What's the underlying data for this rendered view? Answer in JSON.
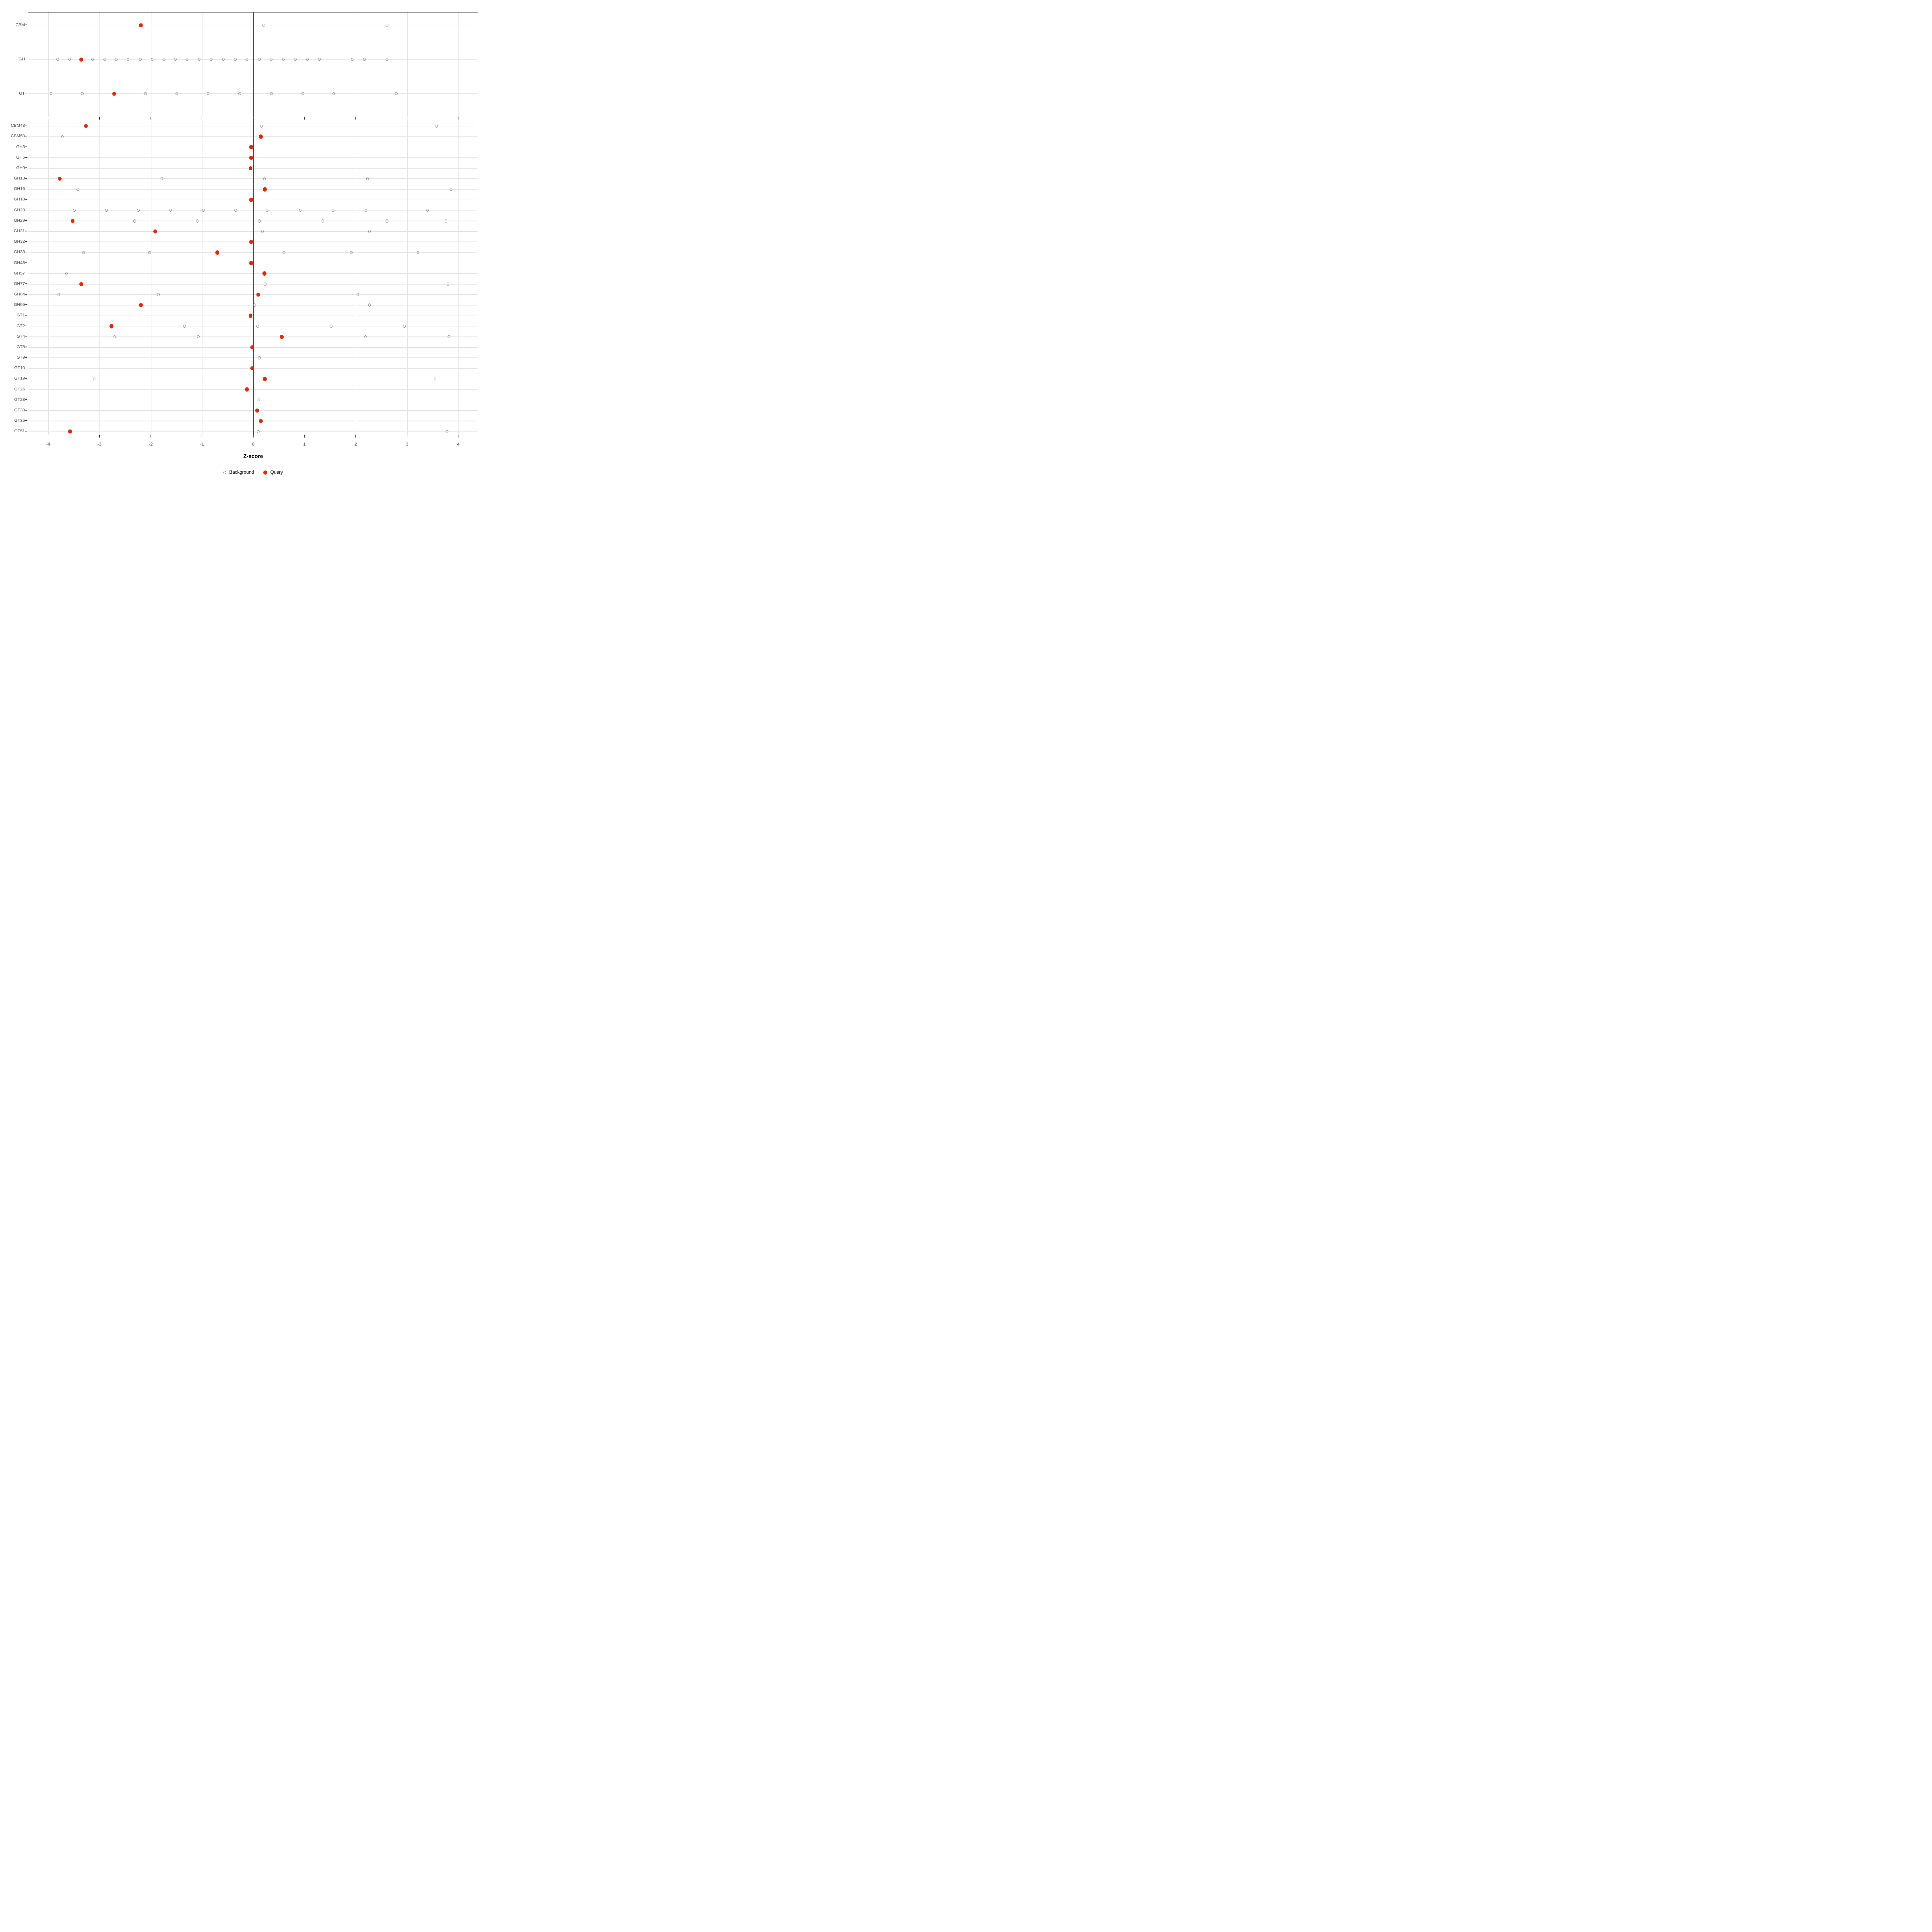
{
  "chart_data": {
    "type": "scatter",
    "variant": "dot-strip-plot",
    "title": "",
    "xlabel": "Z-score",
    "ylabel": "",
    "x_ticks": [
      -4,
      -3,
      -2,
      -1,
      0,
      1,
      2,
      3,
      4
    ],
    "x_tick_labels": [
      "-4",
      "-3",
      "-2",
      "-1",
      "0",
      "1",
      "2",
      "3",
      "4"
    ],
    "xlim": [
      -4.4,
      4.4
    ],
    "grid": true,
    "legend_position": "bottom",
    "reference_lines": {
      "solid_at": 0,
      "dashed_at": [
        -2,
        2
      ]
    },
    "colors": {
      "query": "#db2b0c",
      "background_stroke": "#8f8f8f",
      "gridline": "#e3e3e3",
      "reference_line": "#565656",
      "panel_border": "#333333",
      "axis_text": "#454545"
    },
    "legend": [
      {
        "label": "Background",
        "series": "background"
      },
      {
        "label": "Query",
        "series": "query"
      }
    ],
    "panels": [
      {
        "name": "summary",
        "rows": [
          {
            "label": "CBM",
            "background": [
              0.2,
              2.6
            ],
            "query": -2.2
          },
          {
            "label": "GH",
            "background": [
              -3.82,
              -3.59,
              -3.14,
              -2.9,
              -2.68,
              -2.45,
              -2.21,
              -1.98,
              -1.75,
              -1.53,
              -1.3,
              -1.06,
              -0.83,
              -0.59,
              -0.36,
              -0.13,
              0.11,
              0.34,
              0.58,
              0.81,
              1.05,
              1.28,
              1.92,
              2.16,
              2.6
            ],
            "query": -3.36
          },
          {
            "label": "GT",
            "background": [
              -3.95,
              -3.34,
              -2.11,
              -1.5,
              -0.89,
              -0.27,
              0.35,
              0.96,
              1.56,
              2.78
            ],
            "query": -2.72
          }
        ]
      },
      {
        "name": "families",
        "rows": [
          {
            "label": "CBM48",
            "background": [
              0.15,
              3.57
            ],
            "query": -3.27
          },
          {
            "label": "CBM50",
            "background": [
              -3.73
            ],
            "query": 0.14
          },
          {
            "label": "GH3",
            "background": [],
            "query": -0.05
          },
          {
            "label": "GH5",
            "background": [],
            "query": -0.05
          },
          {
            "label": "GH9",
            "background": [],
            "query": -0.06
          },
          {
            "label": "GH13",
            "background": [
              -1.79,
              0.21,
              2.22
            ],
            "query": -3.78
          },
          {
            "label": "GH16",
            "background": [
              -3.43,
              3.85
            ],
            "query": 0.22
          },
          {
            "label": "GH18",
            "background": [],
            "query": -0.05
          },
          {
            "label": "GH20",
            "background": [
              -3.5,
              -2.87,
              -2.25,
              -1.62,
              -0.98,
              -0.35,
              0.26,
              0.91,
              1.55,
              2.19,
              3.39
            ],
            "query": null
          },
          {
            "label": "GH29",
            "background": [
              -2.32,
              -1.1,
              0.11,
              1.35,
              2.6,
              3.75
            ],
            "query": -3.53
          },
          {
            "label": "GH31",
            "background": [
              0.17,
              2.26
            ],
            "query": -1.92
          },
          {
            "label": "GH32",
            "background": [],
            "query": -0.05
          },
          {
            "label": "GH33",
            "background": [
              -3.32,
              -2.03,
              0.59,
              1.9,
              3.2
            ],
            "query": -0.71
          },
          {
            "label": "GH43",
            "background": [],
            "query": -0.05
          },
          {
            "label": "GH57",
            "background": [
              -3.65
            ],
            "query": 0.21
          },
          {
            "label": "GH77",
            "background": [
              0.22,
              3.79
            ],
            "query": -3.36
          },
          {
            "label": "GH84",
            "background": [
              -3.8,
              -1.86,
              2.03
            ],
            "query": 0.09
          },
          {
            "label": "GH95",
            "background": [
              0.02,
              2.26
            ],
            "query": -2.2
          },
          {
            "label": "GT1",
            "background": [],
            "query": -0.06
          },
          {
            "label": "GT2",
            "background": [
              -1.35,
              0.08,
              1.51,
              2.94
            ],
            "query": -2.77
          },
          {
            "label": "GT4",
            "background": [
              -2.71,
              -1.08,
              2.18,
              3.81
            ],
            "query": 0.55
          },
          {
            "label": "GT8",
            "background": [],
            "query": -0.03
          },
          {
            "label": "GT9",
            "background": [
              0.11
            ],
            "query": null
          },
          {
            "label": "GT10",
            "background": [],
            "query": -0.03
          },
          {
            "label": "GT19",
            "background": [
              -3.11,
              3.54
            ],
            "query": 0.22
          },
          {
            "label": "GT26",
            "background": [],
            "query": -0.13
          },
          {
            "label": "GT28",
            "background": [
              0.1
            ],
            "query": null
          },
          {
            "label": "GT30",
            "background": [],
            "query": 0.07
          },
          {
            "label": "GT35",
            "background": [],
            "query": 0.14
          },
          {
            "label": "GT51",
            "background": [
              0.09,
              3.77
            ],
            "query": -3.58
          }
        ]
      }
    ]
  }
}
